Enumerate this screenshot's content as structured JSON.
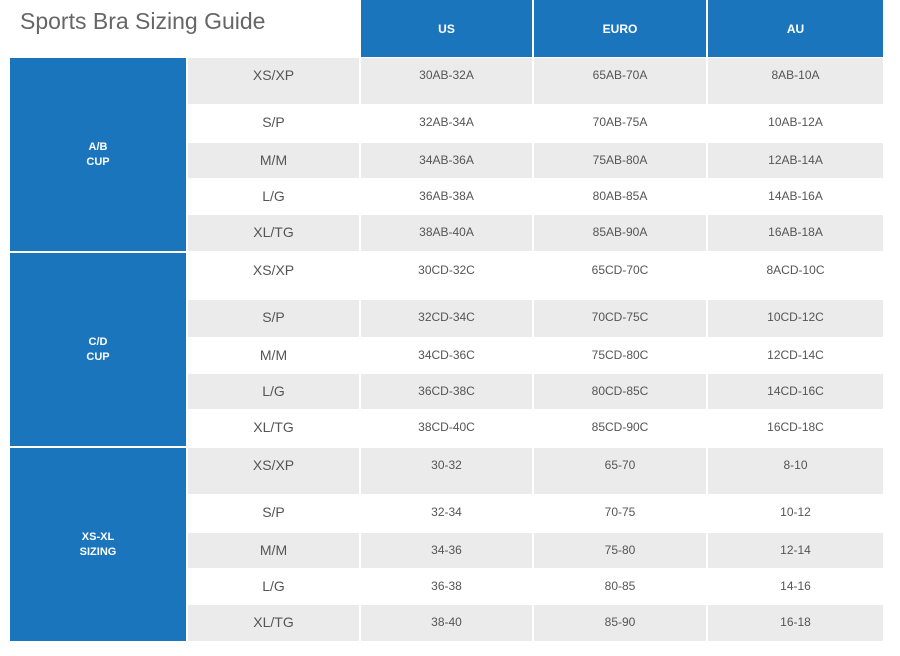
{
  "title": "Sports Bra Sizing Guide",
  "headers": [
    "US",
    "EURO",
    "AU"
  ],
  "groups": [
    {
      "label": [
        "A/B",
        "CUP"
      ],
      "rows": [
        [
          "XS/XP",
          "30AB-32A",
          "65AB-70A",
          "8AB-10A"
        ],
        [
          "S/P",
          "32AB-34A",
          "70AB-75A",
          "10AB-12A"
        ],
        [
          "M/M",
          "34AB-36A",
          "75AB-80A",
          "12AB-14A"
        ],
        [
          "L/G",
          "36AB-38A",
          "80AB-85A",
          "14AB-16A"
        ],
        [
          "XL/TG",
          "38AB-40A",
          "85AB-90A",
          "16AB-18A"
        ]
      ]
    },
    {
      "label": [
        "C/D",
        "CUP"
      ],
      "rows": [
        [
          "XS/XP",
          "30CD-32C",
          "65CD-70C",
          "8ACD-10C"
        ],
        [
          "S/P",
          "32CD-34C",
          "70CD-75C",
          "10CD-12C"
        ],
        [
          "M/M",
          "34CD-36C",
          "75CD-80C",
          "12CD-14C"
        ],
        [
          "L/G",
          "36CD-38C",
          "80CD-85C",
          "14CD-16C"
        ],
        [
          "XL/TG",
          "38CD-40C",
          "85CD-90C",
          "16CD-18C"
        ]
      ]
    },
    {
      "label": [
        "XS-XL",
        "SIZING"
      ],
      "rows": [
        [
          "XS/XP",
          "30-32",
          "65-70",
          "8-10"
        ],
        [
          "S/P",
          "32-34",
          "70-75",
          "10-12"
        ],
        [
          "M/M",
          "34-36",
          "75-80",
          "12-14"
        ],
        [
          "L/G",
          "36-38",
          "80-85",
          "14-16"
        ],
        [
          "XL/TG",
          "38-40",
          "85-90",
          "16-18"
        ]
      ]
    }
  ]
}
